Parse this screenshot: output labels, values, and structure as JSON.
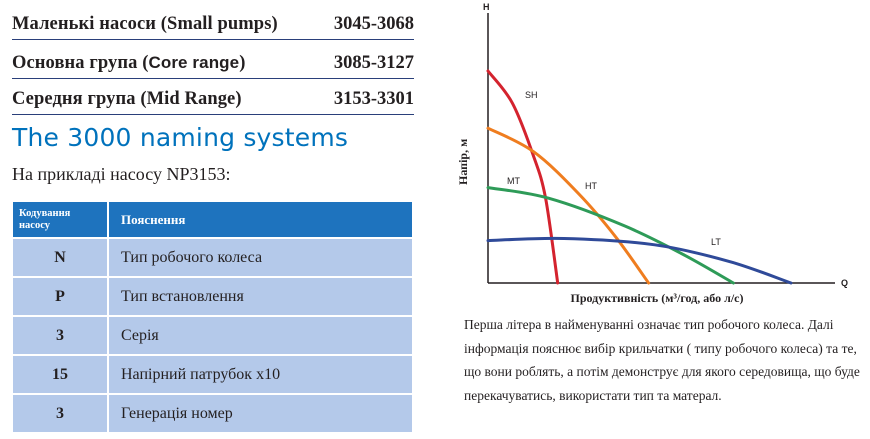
{
  "ranges": [
    {
      "name": "Маленькі насоси (Small pumps)",
      "name_sans": "",
      "name_suffix": "",
      "number": "3045-3068"
    },
    {
      "name": "Основна група (",
      "name_sans": "Core range",
      "name_suffix": ")",
      "number": "3085-3127"
    },
    {
      "name": "Середня група (Mid Range)",
      "name_sans": "",
      "name_suffix": "",
      "number": "3153-3301"
    }
  ],
  "section_title": "The 3000 naming systems",
  "example": "На прикладі насосу NP3153:",
  "table": {
    "header_code": "Кодування насосу",
    "header_desc": "Пояснення",
    "rows": [
      {
        "code": "N",
        "desc": "Тип робочого колеса"
      },
      {
        "code": "P",
        "desc": "Тип встановлення"
      },
      {
        "code": "3",
        "desc": "Серія"
      },
      {
        "code": "15",
        "desc": "Напірний патрубок x10"
      },
      {
        "code": "3",
        "desc": "Генерація номер"
      }
    ]
  },
  "chart_data": {
    "type": "line",
    "title": "",
    "y_axis_letter": "H",
    "x_axis_letter": "Q",
    "ylabel": "Напір, м",
    "xlabel": "Продуктивність (м³/год, або л/с)",
    "grid": false,
    "legend": "none",
    "xlim": [
      0,
      100
    ],
    "ylim": [
      0,
      100
    ],
    "series": [
      {
        "name": "SH",
        "color": "#d4232e",
        "x": [
          0,
          8,
          15,
          19,
          23
        ],
        "y": [
          100,
          85,
          60,
          40,
          0
        ]
      },
      {
        "name": "HT",
        "color": "#ef7d1f",
        "x": [
          0,
          15,
          30,
          42,
          53
        ],
        "y": [
          73,
          62,
          42,
          22,
          0
        ]
      },
      {
        "name": "MT",
        "color": "#2e9b58",
        "x": [
          0,
          20,
          45,
          65,
          81
        ],
        "y": [
          45,
          40,
          27,
          13,
          0
        ]
      },
      {
        "name": "LT",
        "color": "#2f4a99",
        "x": [
          0,
          25,
          55,
          80,
          100
        ],
        "y": [
          20,
          21,
          18,
          10,
          0
        ]
      }
    ]
  },
  "caption": "Перша літера в найменуванні означає тип робочого колеса. Далі інформація пояснює вибір крильчатки ( типу робочого колеса) та те, що вони роблять, а потім демонструє для якого середовища, що буде перекачуватись, використати тип та матерал."
}
